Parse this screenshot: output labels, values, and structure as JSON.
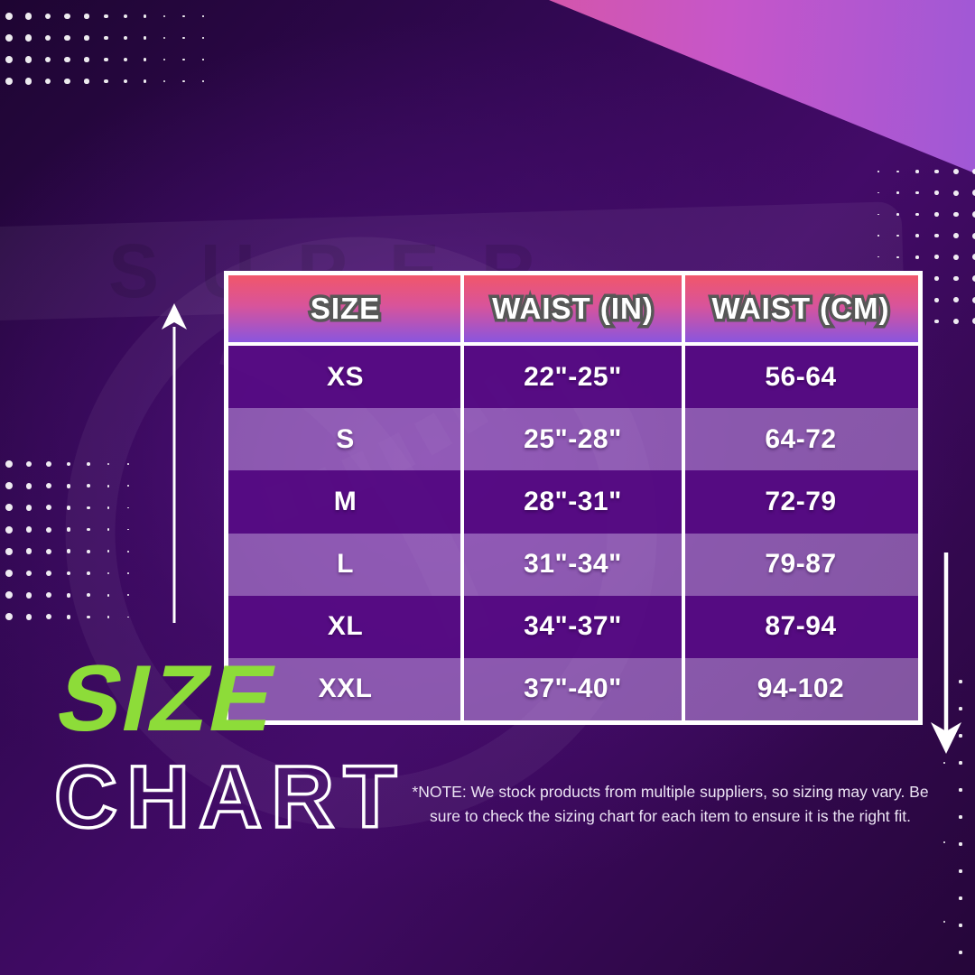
{
  "title": {
    "word_accent": "SIZE",
    "word_outline": "CHART"
  },
  "watermark_text": "SUPER",
  "note_text": "*NOTE: We stock products from multiple suppliers, so sizing may vary. Be sure to check the sizing chart for  each item to ensure it is the right fit.",
  "colors": {
    "accent_green": "#8ddc39",
    "header_gradient_top": "#f1566a",
    "header_gradient_bottom": "#8a55de",
    "triangle_pink": "#ef5470",
    "triangle_purple": "#9f58d6",
    "row_dark": "#560e82",
    "row_light": "#8a57ae",
    "background_purple": "#430b68"
  },
  "table": {
    "headers": [
      "SIZE",
      "WAIST (IN)",
      "WAIST (CM)"
    ],
    "rows": [
      {
        "size": "XS",
        "in": "22\"-25\"",
        "cm": "56-64"
      },
      {
        "size": "S",
        "in": "25\"-28\"",
        "cm": "64-72"
      },
      {
        "size": "M",
        "in": "28\"-31\"",
        "cm": "72-79"
      },
      {
        "size": "L",
        "in": "31\"-34\"",
        "cm": "79-87"
      },
      {
        "size": "XL",
        "in": "34\"-37\"",
        "cm": "87-94"
      },
      {
        "size": "XXL",
        "in": "37\"-40\"",
        "cm": "94-102"
      }
    ]
  },
  "chart_data": {
    "type": "table",
    "title": "SIZE CHART",
    "columns": [
      "SIZE",
      "WAIST (IN)",
      "WAIST (CM)"
    ],
    "rows": [
      [
        "XS",
        "22\"-25\"",
        "56-64"
      ],
      [
        "S",
        "25\"-28\"",
        "64-72"
      ],
      [
        "M",
        "28\"-31\"",
        "72-79"
      ],
      [
        "L",
        "31\"-34\"",
        "79-87"
      ],
      [
        "XL",
        "34\"-37\"",
        "87-94"
      ],
      [
        "XXL",
        "37\"-40\"",
        "94-102"
      ]
    ],
    "footnote": "*NOTE: We stock products from multiple suppliers, so sizing may vary. Be sure to check the sizing chart for  each item to ensure it is the right fit."
  }
}
